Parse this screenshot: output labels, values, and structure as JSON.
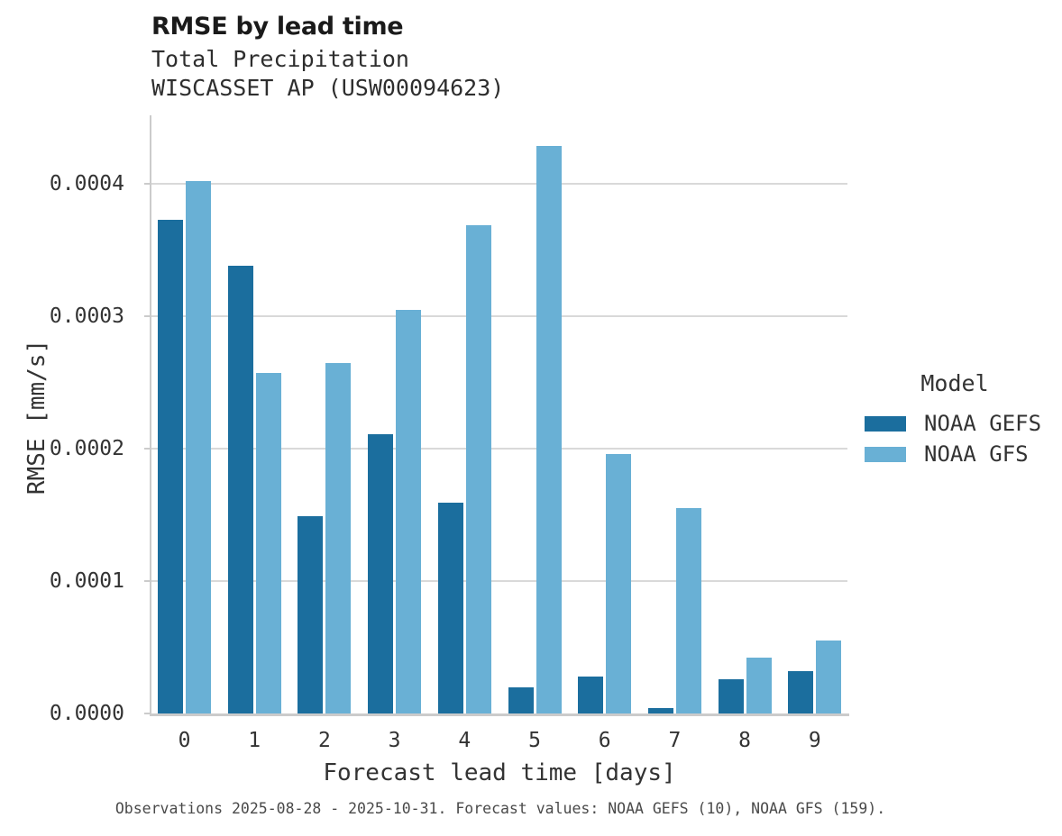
{
  "chart_data": {
    "type": "bar",
    "title": "RMSE by lead time",
    "subtitle": [
      "Total Precipitation",
      "WISCASSET AP (USW00094623)"
    ],
    "station": "WISCASSET AP (USW00094623)",
    "variable": "Total Precipitation",
    "categories": [
      "0",
      "1",
      "2",
      "3",
      "4",
      "5",
      "6",
      "7",
      "8",
      "9"
    ],
    "series": [
      {
        "name": "NOAA GEFS",
        "color": "#1b6e9e",
        "values": [
          0.000373,
          0.000338,
          0.000149,
          0.000211,
          0.000159,
          2e-05,
          2.8e-05,
          4e-06,
          2.6e-05,
          3.2e-05
        ]
      },
      {
        "name": "NOAA GFS",
        "color": "#69b0d5",
        "values": [
          0.000402,
          0.000257,
          0.000265,
          0.000305,
          0.000369,
          0.000429,
          0.000196,
          0.000155,
          4.2e-05,
          5.5e-05
        ]
      }
    ],
    "xlabel": "Forecast lead time [days]",
    "ylabel": "RMSE [mm/s]",
    "ylim": [
      0,
      0.000452
    ],
    "yticks": [
      0,
      0.0001,
      0.0002,
      0.0003,
      0.0004
    ],
    "ytick_labels": [
      "0.0000",
      "0.0001",
      "0.0002",
      "0.0003",
      "0.0004"
    ],
    "grid": true,
    "legend_title": "Model",
    "legend_position": "right",
    "caption": "Observations 2025-08-28 - 2025-10-31. Forecast values: NOAA GEFS (10), NOAA GFS (159)."
  }
}
